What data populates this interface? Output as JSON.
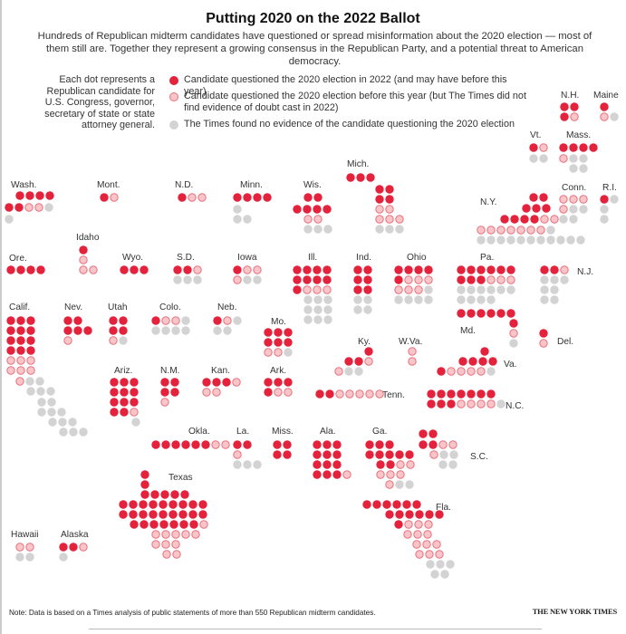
{
  "title": "Putting 2020 on the 2022 Ballot",
  "subtitle": "Hundreds of Republican midterm candidates have questioned or spread misinformation about the 2020 election — most of them still are. Together they represent a growing consensus in the Republican Party, and a potential threat to American democracy.",
  "legend": {
    "intro": "Each dot represents a Republican candidate for U.S. Congress, governor, secretary of state or state attorney general.",
    "items": [
      {
        "key": "q2022",
        "label": "Candidate questioned the 2020 election in 2022 (and may have before this year)"
      },
      {
        "key": "before",
        "label": "Candidate questioned the 2020 election before this year (but The Times did not find evidence of doubt cast in 2022)"
      },
      {
        "key": "none",
        "label": "The Times found no evidence of the candidate questioning the 2020 election"
      }
    ]
  },
  "colors": {
    "q2022": "#e4223c",
    "before": "#f9c5c8",
    "before_stroke": "#e8707c",
    "none": "#d3d3d3"
  },
  "note": "Note: Data is based on a Times analysis of public statements of more than 550 Republican midterm candidates.",
  "credit": "THE NEW YORK TIMES",
  "chart_data": {
    "type": "dot grid map",
    "unit": "one dot = one Republican candidate",
    "categories": [
      "q2022",
      "before",
      "none"
    ],
    "states": [
      {
        "name": "Wash.",
        "q2022": 6,
        "before": 2,
        "none": 2
      },
      {
        "name": "Mont.",
        "q2022": 1,
        "before": 1,
        "none": 0
      },
      {
        "name": "N.D.",
        "q2022": 1,
        "before": 2,
        "none": 0
      },
      {
        "name": "Minn.",
        "q2022": 4,
        "before": 0,
        "none": 4
      },
      {
        "name": "Wis.",
        "q2022": 6,
        "before": 2,
        "none": 3
      },
      {
        "name": "Mich.",
        "q2022": 7,
        "before": 5,
        "none": 3
      },
      {
        "name": "N.Y.",
        "q2022": 9,
        "before": 9,
        "none": 12
      },
      {
        "name": "Vt.",
        "q2022": 1,
        "before": 1,
        "none": 2
      },
      {
        "name": "N.H.",
        "q2022": 3,
        "before": 1,
        "none": 0
      },
      {
        "name": "Maine",
        "q2022": 1,
        "before": 1,
        "none": 1
      },
      {
        "name": "Mass.",
        "q2022": 4,
        "before": 1,
        "none": 4
      },
      {
        "name": "Conn.",
        "q2022": 0,
        "before": 4,
        "none": 4
      },
      {
        "name": "R.I.",
        "q2022": 1,
        "before": 0,
        "none": 3
      },
      {
        "name": "Idaho",
        "q2022": 1,
        "before": 3,
        "none": 0
      },
      {
        "name": "Ore.",
        "q2022": 4,
        "before": 0,
        "none": 0
      },
      {
        "name": "Wyo.",
        "q2022": 3,
        "before": 0,
        "none": 0
      },
      {
        "name": "S.D.",
        "q2022": 2,
        "before": 1,
        "none": 3
      },
      {
        "name": "Iowa",
        "q2022": 1,
        "before": 3,
        "none": 2
      },
      {
        "name": "Ill.",
        "q2022": 9,
        "before": 3,
        "none": 9
      },
      {
        "name": "Ind.",
        "q2022": 6,
        "before": 0,
        "none": 4
      },
      {
        "name": "Ohio",
        "q2022": 5,
        "before": 6,
        "none": 5
      },
      {
        "name": "Pa.",
        "q2022": 9,
        "before": 3,
        "none": 10
      },
      {
        "name": "N.J.",
        "q2022": 2,
        "before": 1,
        "none": 7
      },
      {
        "name": "Calif.",
        "q2022": 12,
        "before": 7,
        "none": 20
      },
      {
        "name": "Nev.",
        "q2022": 5,
        "before": 1,
        "none": 0
      },
      {
        "name": "Utah",
        "q2022": 4,
        "before": 1,
        "none": 1
      },
      {
        "name": "Colo.",
        "q2022": 1,
        "before": 2,
        "none": 5
      },
      {
        "name": "Neb.",
        "q2022": 1,
        "before": 1,
        "none": 3
      },
      {
        "name": "Mo.",
        "q2022": 6,
        "before": 2,
        "none": 1
      },
      {
        "name": "Md.",
        "q2022": 7,
        "before": 1,
        "none": 1
      },
      {
        "name": "Del.",
        "q2022": 1,
        "before": 1,
        "none": 0
      },
      {
        "name": "Ky.",
        "q2022": 3,
        "before": 2,
        "none": 2
      },
      {
        "name": "W.Va.",
        "q2022": 0,
        "before": 2,
        "none": 0
      },
      {
        "name": "Va.",
        "q2022": 6,
        "before": 4,
        "none": 1
      },
      {
        "name": "Ariz.",
        "q2022": 11,
        "before": 1,
        "none": 1
      },
      {
        "name": "N.M.",
        "q2022": 4,
        "before": 1,
        "none": 0
      },
      {
        "name": "Kan.",
        "q2022": 3,
        "before": 3,
        "none": 0
      },
      {
        "name": "Ark.",
        "q2022": 4,
        "before": 2,
        "none": 0
      },
      {
        "name": "Tenn.",
        "q2022": 2,
        "before": 5,
        "none": 0
      },
      {
        "name": "N.C.",
        "q2022": 10,
        "before": 4,
        "none": 1
      },
      {
        "name": "Okla.",
        "q2022": 6,
        "before": 2,
        "none": 0
      },
      {
        "name": "La.",
        "q2022": 2,
        "before": 1,
        "none": 3
      },
      {
        "name": "Miss.",
        "q2022": 4,
        "before": 0,
        "none": 0
      },
      {
        "name": "Ala.",
        "q2022": 12,
        "before": 1,
        "none": 0
      },
      {
        "name": "Ga.",
        "q2022": 10,
        "before": 6,
        "none": 2
      },
      {
        "name": "S.C.",
        "q2022": 4,
        "before": 3,
        "none": 4
      },
      {
        "name": "Texas",
        "q2022": 32,
        "before": 11,
        "none": 12
      },
      {
        "name": "Fla.",
        "q2022": 13,
        "before": 12,
        "none": 5
      },
      {
        "name": "Hawaii",
        "q2022": 0,
        "before": 2,
        "none": 2
      },
      {
        "name": "Alaska",
        "q2022": 2,
        "before": 1,
        "none": 1
      }
    ]
  }
}
